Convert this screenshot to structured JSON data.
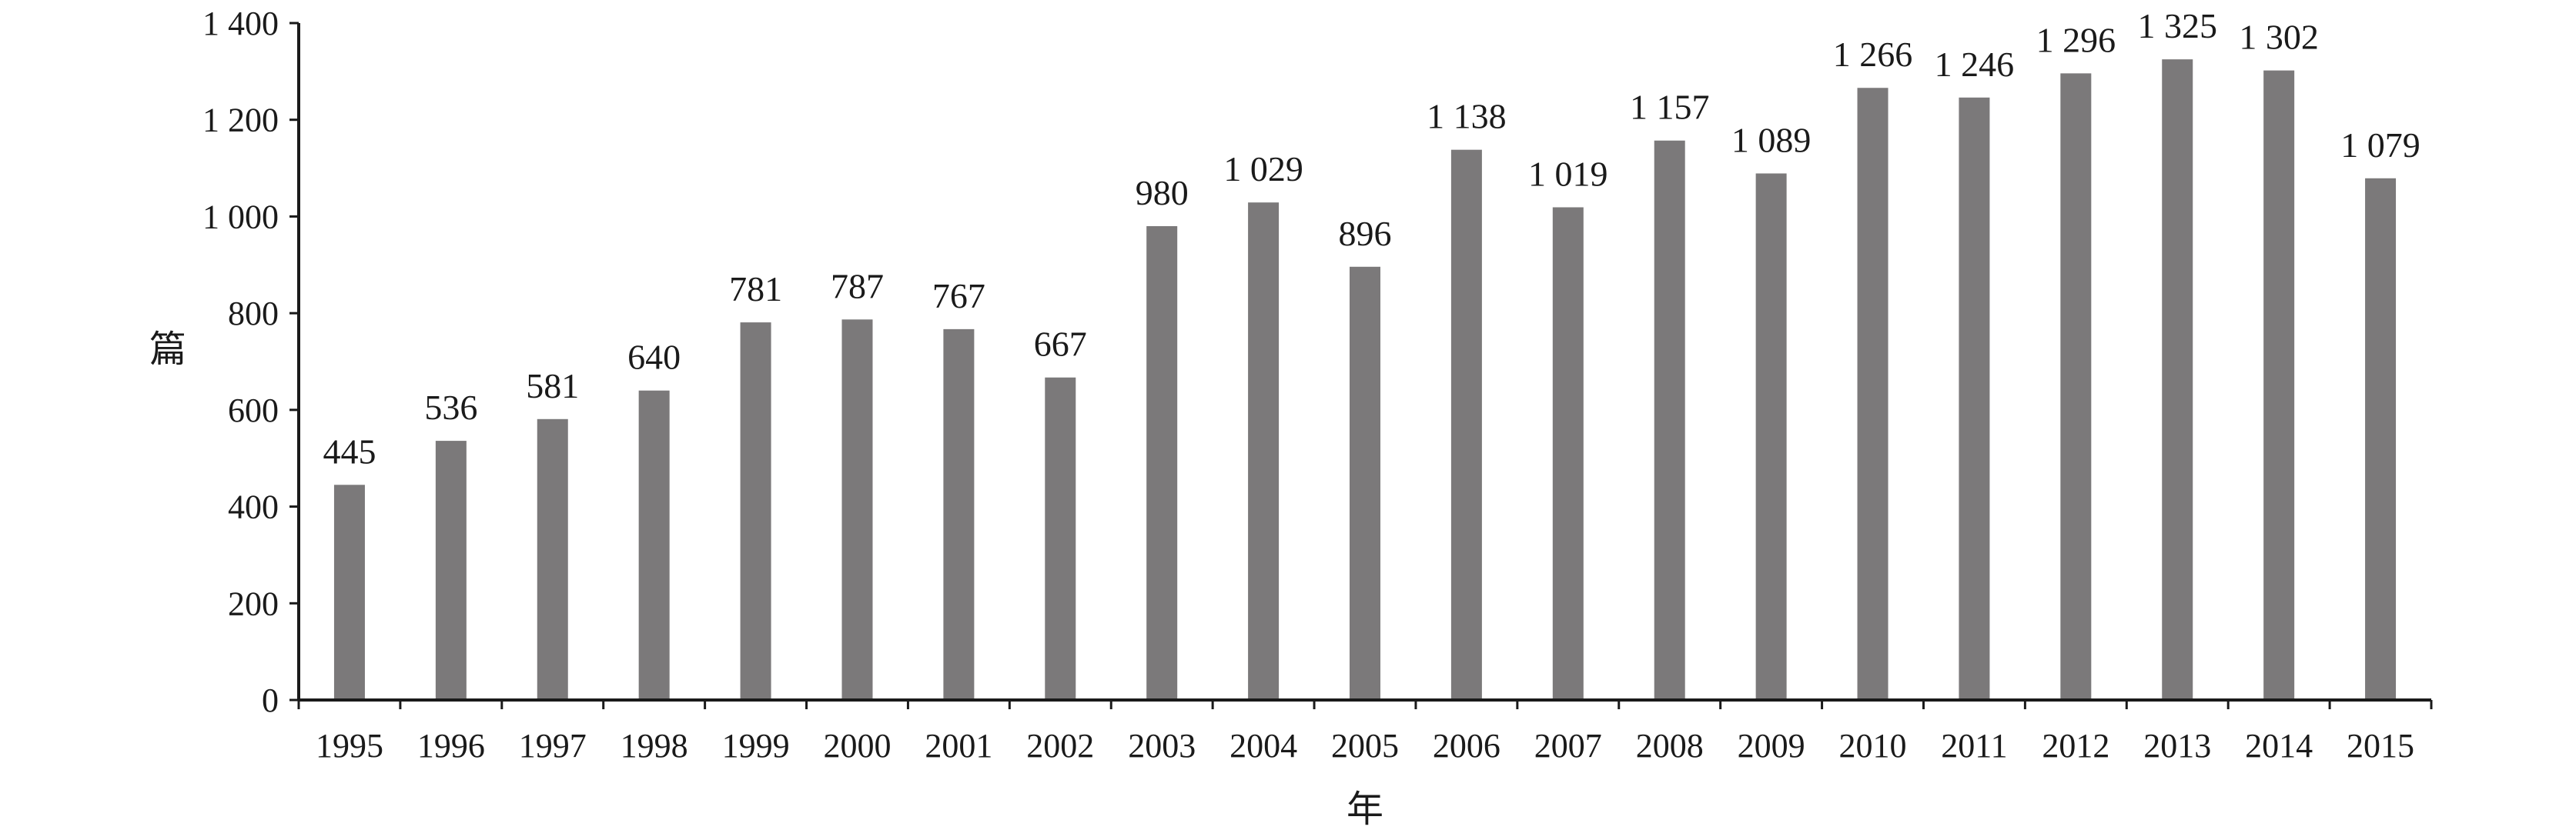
{
  "chart_data": {
    "type": "bar",
    "categories": [
      "1995",
      "1996",
      "1997",
      "1998",
      "1999",
      "2000",
      "2001",
      "2002",
      "2003",
      "2004",
      "2005",
      "2006",
      "2007",
      "2008",
      "2009",
      "2010",
      "2011",
      "2012",
      "2013",
      "2014",
      "2015"
    ],
    "values": [
      445,
      536,
      581,
      640,
      781,
      787,
      767,
      667,
      980,
      1029,
      896,
      1138,
      1019,
      1157,
      1089,
      1266,
      1246,
      1296,
      1325,
      1302,
      1079
    ],
    "data_labels": [
      "445",
      "536",
      "581",
      "640",
      "781",
      "787",
      "767",
      "667",
      "980",
      "1 029",
      "896",
      "1 138",
      "1 019",
      "1 157",
      "1 089",
      "1 266",
      "1 246",
      "1 296",
      "1 325",
      "1 302",
      "1 079"
    ],
    "title": "",
    "xlabel": "年",
    "ylabel": "篇",
    "ylim": [
      0,
      1400
    ],
    "yticks": [
      0,
      200,
      400,
      600,
      800,
      1000,
      1200,
      1400
    ],
    "ytick_labels": [
      "0",
      "200",
      "400",
      "600",
      "800",
      "1 000",
      "1 200",
      "1 400"
    ],
    "grid": false,
    "legend": "none",
    "colors": {
      "bar": "#7b797a",
      "axis": "#1a1a1a"
    }
  }
}
